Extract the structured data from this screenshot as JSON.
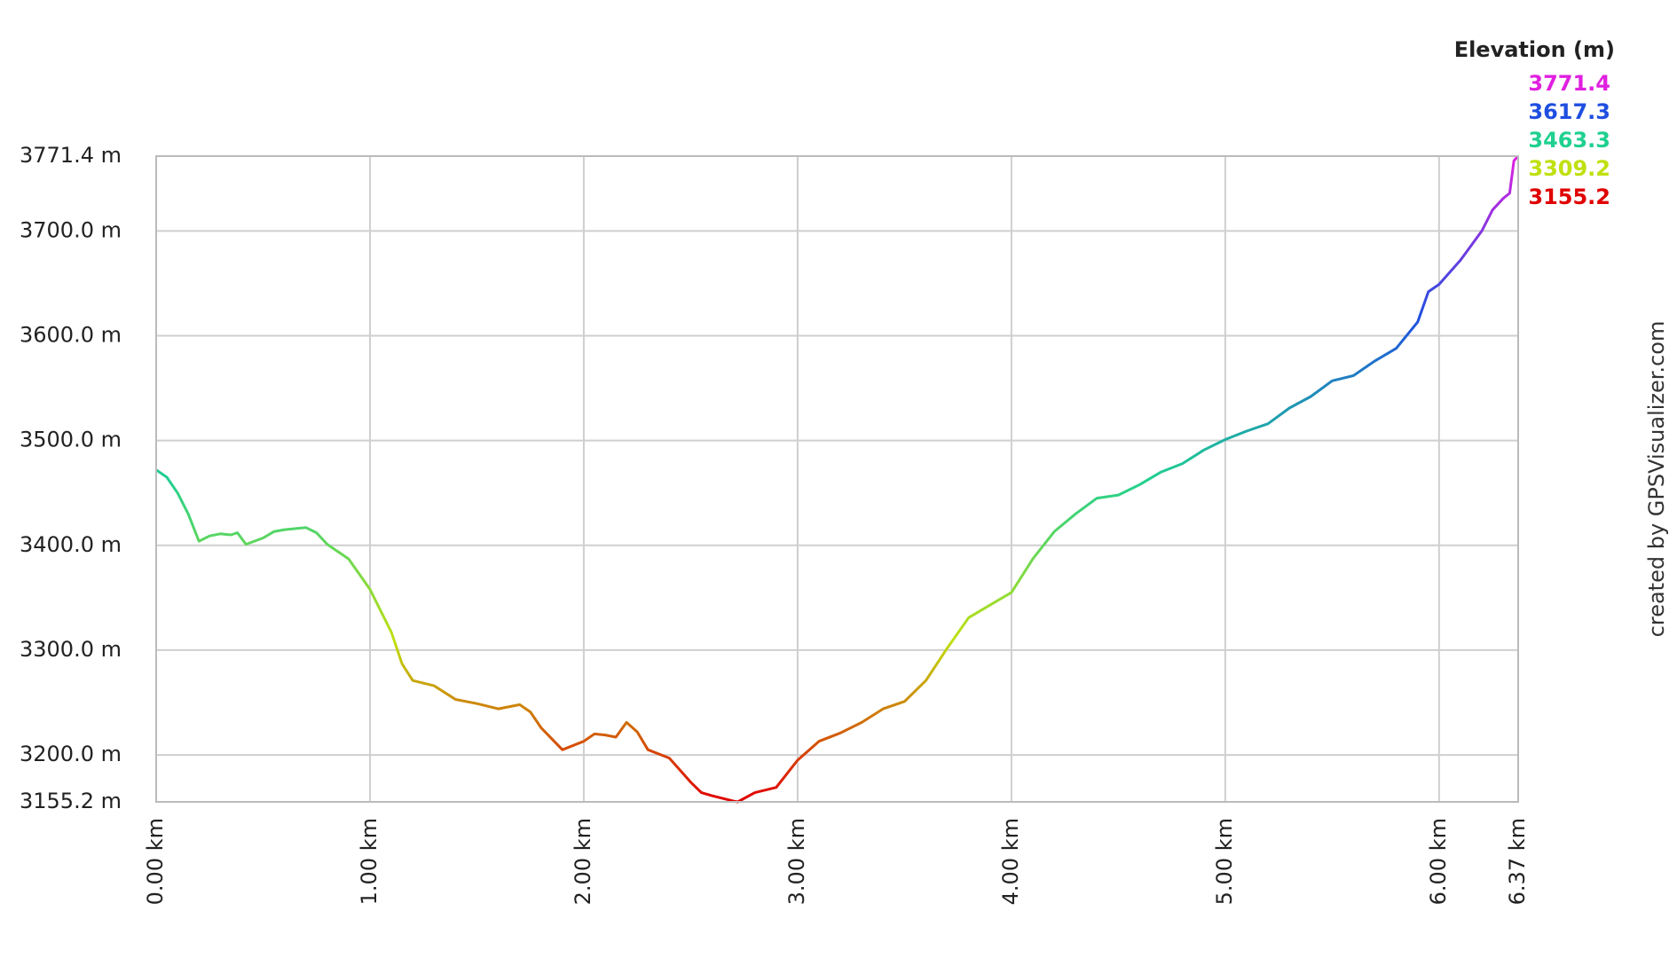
{
  "chart_data": {
    "type": "line",
    "legend_title": "Elevation (m)",
    "credit": "created by GPSVisualizer.com",
    "color_scale": {
      "values": [
        3771.4,
        3617.3,
        3463.3,
        3309.2,
        3155.2
      ],
      "colors": [
        "#e020e0",
        "#1f4fe0",
        "#20d090",
        "#c0e010",
        "#e00000"
      ]
    },
    "x": [
      0,
      0.05,
      0.1,
      0.15,
      0.2,
      0.25,
      0.3,
      0.35,
      0.38,
      0.42,
      0.5,
      0.55,
      0.6,
      0.7,
      0.75,
      0.8,
      0.9,
      1.0,
      1.1,
      1.15,
      1.2,
      1.3,
      1.4,
      1.5,
      1.6,
      1.7,
      1.75,
      1.8,
      1.9,
      2.0,
      2.05,
      2.1,
      2.15,
      2.2,
      2.25,
      2.3,
      2.4,
      2.5,
      2.55,
      2.6,
      2.7,
      2.72,
      2.8,
      2.9,
      3.0,
      3.1,
      3.2,
      3.3,
      3.4,
      3.5,
      3.6,
      3.7,
      3.8,
      3.9,
      4.0,
      4.1,
      4.2,
      4.3,
      4.4,
      4.5,
      4.6,
      4.7,
      4.8,
      4.9,
      5.0,
      5.1,
      5.2,
      5.3,
      5.4,
      5.5,
      5.6,
      5.7,
      5.8,
      5.9,
      5.95,
      6.0,
      6.1,
      6.2,
      6.25,
      6.3,
      6.33,
      6.35,
      6.37
    ],
    "values": [
      3472,
      3465,
      3450,
      3430,
      3404,
      3409,
      3411,
      3410,
      3412,
      3401,
      3407,
      3413,
      3415,
      3417,
      3412,
      3401,
      3387,
      3358,
      3317,
      3287,
      3271,
      3266,
      3253,
      3249,
      3244,
      3248,
      3241,
      3226,
      3205,
      3213,
      3220,
      3219,
      3217,
      3231,
      3222,
      3205,
      3197,
      3174,
      3164,
      3161,
      3156,
      3155.2,
      3164,
      3169,
      3195,
      3213,
      3221,
      3231,
      3244,
      3251,
      3271,
      3302,
      3331,
      3343,
      3355,
      3387,
      3413,
      3430,
      3445,
      3448,
      3458,
      3470,
      3478,
      3491,
      3501,
      3509,
      3516,
      3531,
      3542,
      3557,
      3562,
      3576,
      3588,
      3613,
      3642,
      3649,
      3672,
      3700,
      3720,
      3731,
      3736,
      3767,
      3771.4
    ],
    "xlim": [
      0,
      6.37
    ],
    "xticks": [
      {
        "value": 0,
        "label": "0.00 km"
      },
      {
        "value": 1,
        "label": "1.00 km"
      },
      {
        "value": 2,
        "label": "2.00 km"
      },
      {
        "value": 3,
        "label": "3.00 km"
      },
      {
        "value": 4,
        "label": "4.00 km"
      },
      {
        "value": 5,
        "label": "5.00 km"
      },
      {
        "value": 6,
        "label": "6.00 km"
      },
      {
        "value": 6.37,
        "label": "6.37 km"
      }
    ],
    "ylim": [
      3155.2,
      3771.4
    ],
    "yticks": [
      {
        "value": 3155.2,
        "label": "3155.2 m"
      },
      {
        "value": 3200,
        "label": "3200.0 m"
      },
      {
        "value": 3300,
        "label": "3300.0 m"
      },
      {
        "value": 3400,
        "label": "3400.0 m"
      },
      {
        "value": 3500,
        "label": "3500.0 m"
      },
      {
        "value": 3600,
        "label": "3600.0 m"
      },
      {
        "value": 3700,
        "label": "3700.0 m"
      },
      {
        "value": 3771.4,
        "label": "3771.4 m"
      }
    ],
    "grid": true
  }
}
